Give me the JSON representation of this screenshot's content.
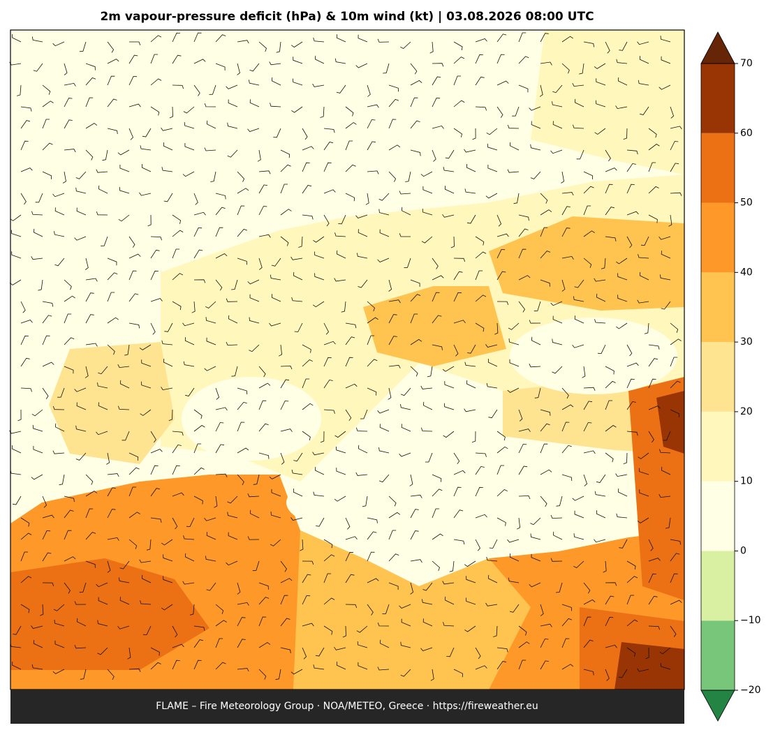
{
  "map": {
    "title": "2m vapour-pressure deficit (hPa) & 10m wind (kt)  |  03.08.2026 08:00 UTC",
    "footer": "FLAME – Fire Meteorology Group · NOA/METEO, Greece · https://fireweather.eu"
  },
  "colorbar": {
    "ticks": [
      {
        "value": -20,
        "label": "−20"
      },
      {
        "value": -10,
        "label": "−10"
      },
      0,
      10,
      20,
      30,
      40,
      50,
      60,
      70
    ],
    "lim": [
      -20,
      70
    ],
    "colors": [
      "#78c679",
      "#d9f0a3",
      "#ffffe5",
      "#fff7bc",
      "#fee391",
      "#fec44f",
      "#fe9929",
      "#ec7014",
      "#993404"
    ],
    "under_color": "#238443",
    "over_color": "#662506"
  }
}
